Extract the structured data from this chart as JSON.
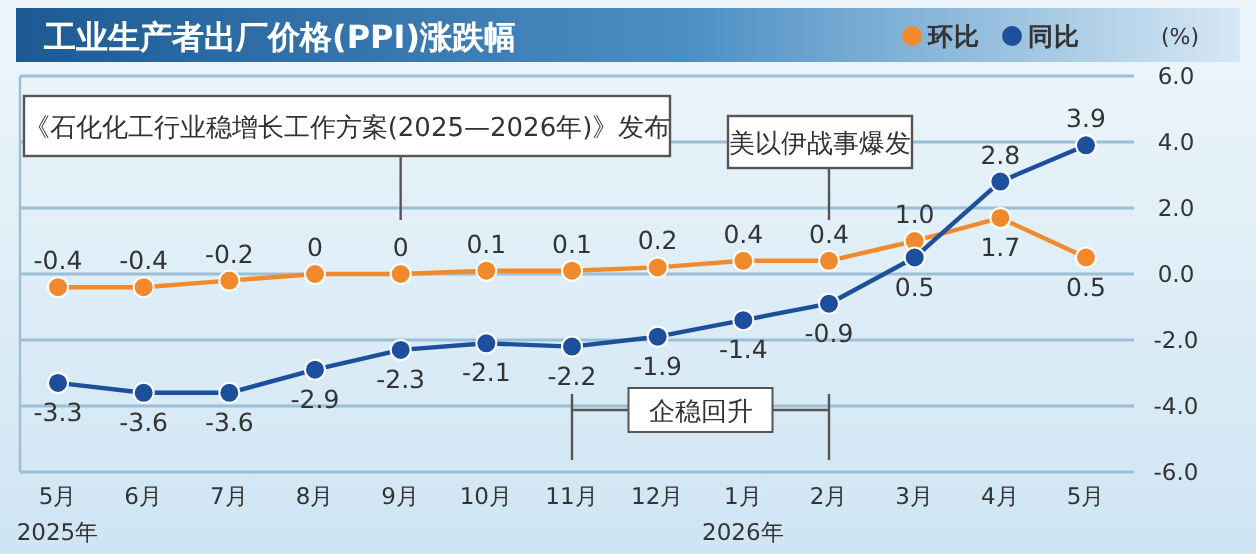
{
  "chart_data": {
    "type": "line",
    "title": "工业生产者出厂价格(PPI)涨跌幅",
    "ylabel": "(%)",
    "categories": [
      "5月",
      "6月",
      "7月",
      "8月",
      "9月",
      "10月",
      "11月",
      "12月",
      "1月",
      "2月",
      "3月",
      "4月",
      "5月"
    ],
    "series": [
      {
        "name": "环比",
        "color": "#f08a2c",
        "values": [
          -0.4,
          -0.4,
          -0.2,
          0,
          0,
          0.1,
          0.1,
          0.2,
          0.4,
          0.4,
          1.0,
          1.7,
          0.5
        ],
        "value_labels": [
          "-0.4",
          "-0.4",
          "-0.2",
          "0",
          "0",
          "0.1",
          "0.1",
          "0.2",
          "0.4",
          "0.4",
          "1.0",
          "1.7",
          "0.5"
        ]
      },
      {
        "name": "同比",
        "color": "#1d4f9c",
        "values": [
          -3.3,
          -3.6,
          -3.6,
          -2.9,
          -2.3,
          -2.1,
          -2.2,
          -1.9,
          -1.4,
          -0.9,
          0.5,
          2.8,
          3.9
        ],
        "value_labels": [
          "-3.3",
          "-3.6",
          "-3.6",
          "-2.9",
          "-2.3",
          "-2.1",
          "-2.2",
          "-1.9",
          "-1.4",
          "-0.9",
          "0.5",
          "2.8",
          "3.9"
        ]
      }
    ],
    "ylim": [
      -6,
      6
    ],
    "yticks": [
      {
        "value": -6,
        "label": "-6.0"
      },
      {
        "value": -4,
        "label": "-4.0"
      },
      {
        "value": -2,
        "label": "-2.0"
      },
      {
        "value": 0,
        "label": "0.0"
      },
      {
        "value": 2,
        "label": "2.0"
      },
      {
        "value": 4,
        "label": "4.0"
      },
      {
        "value": 6,
        "label": "6.0"
      }
    ],
    "grid": "y",
    "legend": "top right",
    "marker": "circle",
    "line_style": "solid",
    "annotations": [
      "《石化化工行业稳增长工作方案(2025—2026年)》发布",
      "美以伊战事爆发",
      "企稳回升",
      "2025年",
      "2026年"
    ]
  }
}
